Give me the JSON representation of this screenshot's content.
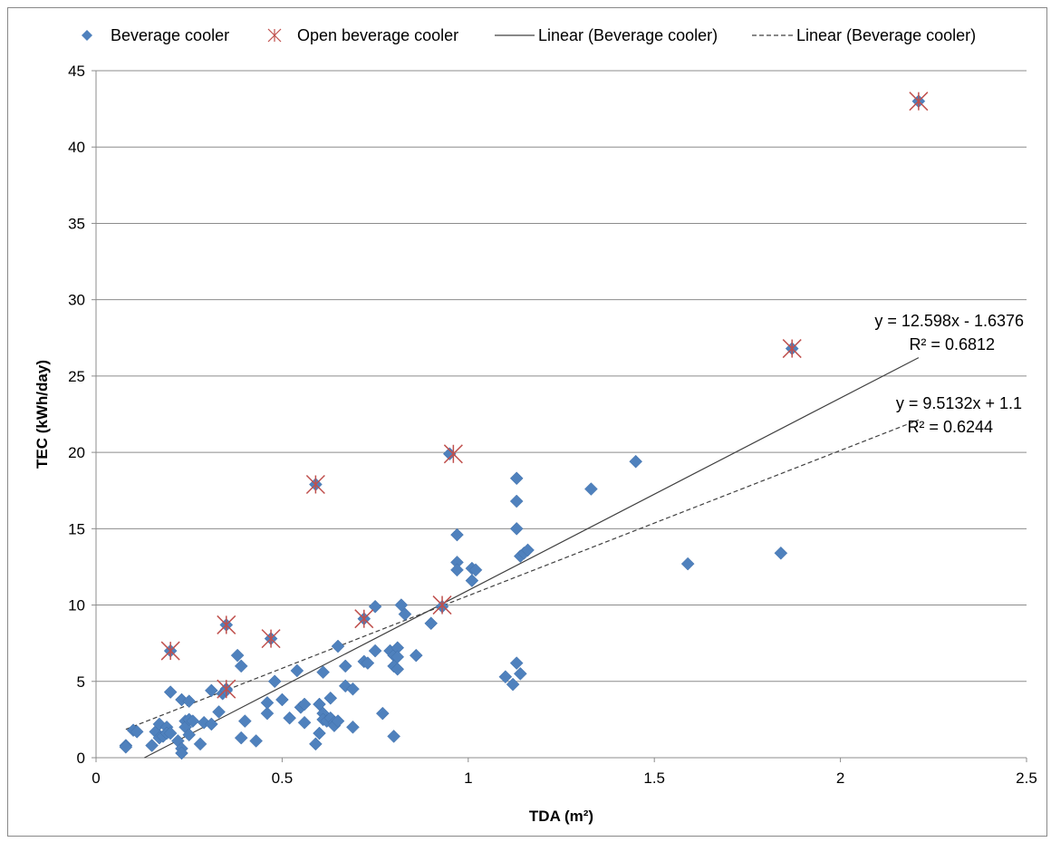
{
  "chart_data": {
    "type": "scatter",
    "xlabel": "TDA (m²)",
    "ylabel": "TEC (kWh/day)",
    "xlim": [
      0,
      2.5
    ],
    "ylim": [
      0,
      45
    ],
    "x_ticks": [
      "0",
      "0.5",
      "1",
      "1.5",
      "2",
      "2.5"
    ],
    "y_ticks": [
      "0",
      "5",
      "10",
      "15",
      "20",
      "25",
      "30",
      "35",
      "40",
      "45"
    ],
    "grid": "horizontal",
    "legend_position": "top",
    "legend": [
      {
        "label": "Beverage cooler",
        "marker": "diamond"
      },
      {
        "label": "Open beverage cooler",
        "marker": "asterisk"
      },
      {
        "label": "Linear (Beverage cooler)",
        "line": "solid"
      },
      {
        "label": "Linear (Beverage cooler)",
        "line": "dashed"
      }
    ],
    "series": [
      {
        "name": "Beverage cooler",
        "color": "#4f81bd",
        "points": [
          [
            0.08,
            0.8
          ],
          [
            0.08,
            0.7
          ],
          [
            0.1,
            1.8
          ],
          [
            0.11,
            1.7
          ],
          [
            0.15,
            0.8
          ],
          [
            0.16,
            1.7
          ],
          [
            0.17,
            1.3
          ],
          [
            0.17,
            2.2
          ],
          [
            0.18,
            1.4
          ],
          [
            0.19,
            2.0
          ],
          [
            0.19,
            1.6
          ],
          [
            0.2,
            1.6
          ],
          [
            0.2,
            4.3
          ],
          [
            0.22,
            1.1
          ],
          [
            0.23,
            3.8
          ],
          [
            0.23,
            0.6
          ],
          [
            0.23,
            0.3
          ],
          [
            0.24,
            2.4
          ],
          [
            0.24,
            2.0
          ],
          [
            0.25,
            2.5
          ],
          [
            0.25,
            3.7
          ],
          [
            0.25,
            1.5
          ],
          [
            0.26,
            2.4
          ],
          [
            0.28,
            0.9
          ],
          [
            0.29,
            2.3
          ],
          [
            0.31,
            2.2
          ],
          [
            0.31,
            4.4
          ],
          [
            0.33,
            3.0
          ],
          [
            0.34,
            4.2
          ],
          [
            0.35,
            4.5
          ],
          [
            0.38,
            6.7
          ],
          [
            0.39,
            1.3
          ],
          [
            0.39,
            6.0
          ],
          [
            0.4,
            2.4
          ],
          [
            0.43,
            1.1
          ],
          [
            0.46,
            2.9
          ],
          [
            0.46,
            3.6
          ],
          [
            0.48,
            5.0
          ],
          [
            0.5,
            3.8
          ],
          [
            0.52,
            2.6
          ],
          [
            0.54,
            5.7
          ],
          [
            0.55,
            3.3
          ],
          [
            0.56,
            2.3
          ],
          [
            0.56,
            3.5
          ],
          [
            0.59,
            0.9
          ],
          [
            0.6,
            1.6
          ],
          [
            0.6,
            3.5
          ],
          [
            0.61,
            2.9
          ],
          [
            0.61,
            2.5
          ],
          [
            0.61,
            5.6
          ],
          [
            0.62,
            2.4
          ],
          [
            0.63,
            3.9
          ],
          [
            0.63,
            2.6
          ],
          [
            0.64,
            2.3
          ],
          [
            0.64,
            2.1
          ],
          [
            0.65,
            2.4
          ],
          [
            0.65,
            7.3
          ],
          [
            0.67,
            6.0
          ],
          [
            0.67,
            4.7
          ],
          [
            0.69,
            4.5
          ],
          [
            0.69,
            2.0
          ],
          [
            0.72,
            6.3
          ],
          [
            0.73,
            6.2
          ],
          [
            0.75,
            9.9
          ],
          [
            0.75,
            7.0
          ],
          [
            0.77,
            2.9
          ],
          [
            0.79,
            7.0
          ],
          [
            0.8,
            1.4
          ],
          [
            0.8,
            6.7
          ],
          [
            0.8,
            6.0
          ],
          [
            0.81,
            7.2
          ],
          [
            0.81,
            6.6
          ],
          [
            0.81,
            5.8
          ],
          [
            0.82,
            10.0
          ],
          [
            0.83,
            9.4
          ],
          [
            0.86,
            6.7
          ],
          [
            0.9,
            8.8
          ],
          [
            0.93,
            9.9
          ],
          [
            0.97,
            12.8
          ],
          [
            0.97,
            12.3
          ],
          [
            0.97,
            14.6
          ],
          [
            1.01,
            12.4
          ],
          [
            1.01,
            11.6
          ],
          [
            1.02,
            12.3
          ],
          [
            1.1,
            5.3
          ],
          [
            1.12,
            4.8
          ],
          [
            1.13,
            6.2
          ],
          [
            1.13,
            18.3
          ],
          [
            1.13,
            16.8
          ],
          [
            1.13,
            15.0
          ],
          [
            1.14,
            13.2
          ],
          [
            1.14,
            5.5
          ],
          [
            1.15,
            13.4
          ],
          [
            1.16,
            13.6
          ],
          [
            1.33,
            17.6
          ],
          [
            1.45,
            19.4
          ],
          [
            1.59,
            12.7
          ],
          [
            1.84,
            13.4
          ],
          [
            1.87,
            26.8
          ],
          [
            2.21,
            43.0
          ],
          [
            0.2,
            7.0
          ],
          [
            0.35,
            8.7
          ],
          [
            0.47,
            7.8
          ],
          [
            0.59,
            17.9
          ],
          [
            0.72,
            9.1
          ],
          [
            0.95,
            19.9
          ],
          [
            0.35,
            4.4
          ]
        ]
      },
      {
        "name": "Open beverage cooler",
        "color": "#c0504d",
        "points": [
          [
            0.2,
            7.0
          ],
          [
            0.35,
            8.7
          ],
          [
            0.35,
            4.5
          ],
          [
            0.47,
            7.8
          ],
          [
            0.59,
            17.9
          ],
          [
            0.72,
            9.1
          ],
          [
            0.93,
            10.0
          ],
          [
            0.96,
            19.9
          ],
          [
            1.87,
            26.8
          ],
          [
            2.21,
            43.0
          ]
        ]
      }
    ],
    "trendlines": [
      {
        "style": "solid",
        "slope": 12.598,
        "intercept": -1.6376,
        "x_range": [
          0.13,
          2.21
        ],
        "equation": "y = 12.598x - 1.6376",
        "r2": "R² = 0.6812"
      },
      {
        "style": "dashed",
        "slope": 9.5132,
        "intercept": 1.1,
        "x_range": [
          0.08,
          2.21
        ],
        "equation": "y = 9.5132x + 1.1",
        "r2": "R² = 0.6244"
      }
    ]
  }
}
